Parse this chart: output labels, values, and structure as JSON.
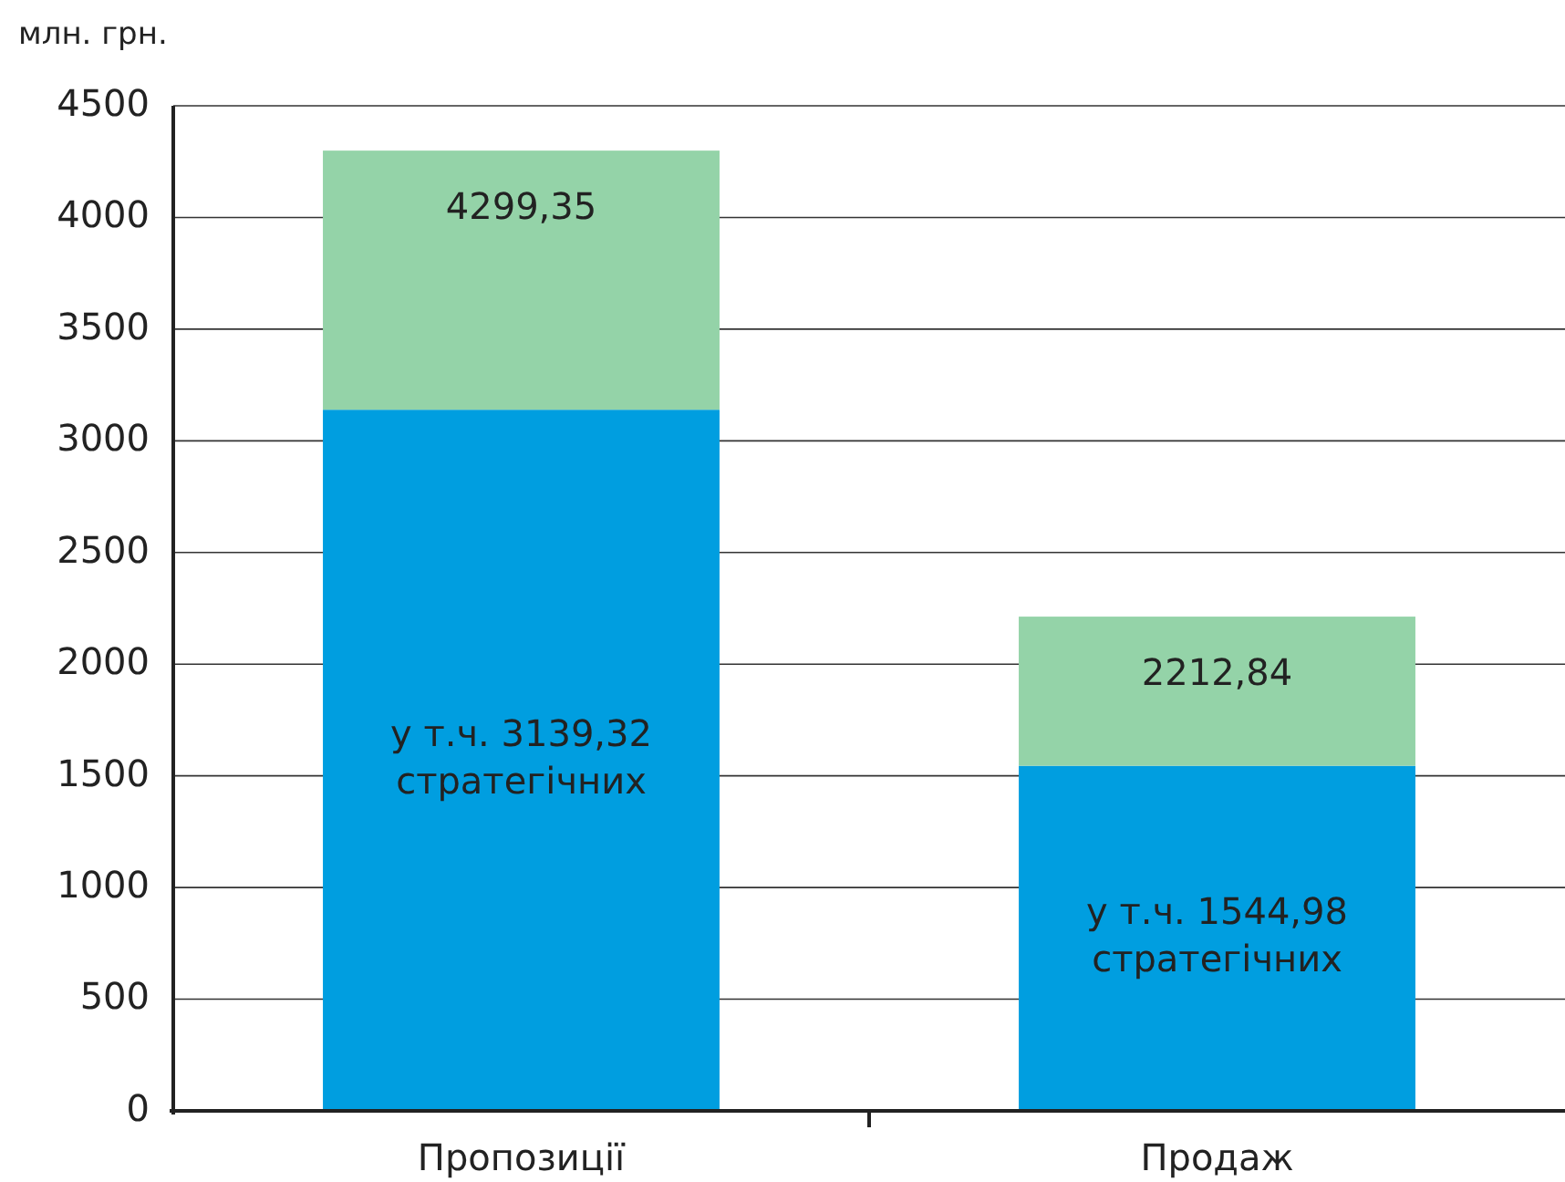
{
  "chart_data": {
    "type": "bar",
    "stacked": true,
    "ylabel": "млн. грн.",
    "categories": [
      "Пропозиції",
      "Продаж"
    ],
    "series": [
      {
        "color": "#009ee0",
        "values": [
          3139.32,
          1544.98
        ],
        "value_labels": [
          "у т.ч. 3139,32 стратегічних",
          "у т.ч. 1544,98 стратегічних"
        ]
      },
      {
        "color": "#94d3a8",
        "values": [
          1160.03,
          667.86
        ]
      }
    ],
    "totals": [
      "4299,35",
      "2212,84"
    ],
    "ylim": [
      0,
      4500
    ],
    "yticks": [
      0,
      500,
      1000,
      1500,
      2000,
      2500,
      3000,
      3500,
      4000,
      4500
    ],
    "grid": "y"
  }
}
